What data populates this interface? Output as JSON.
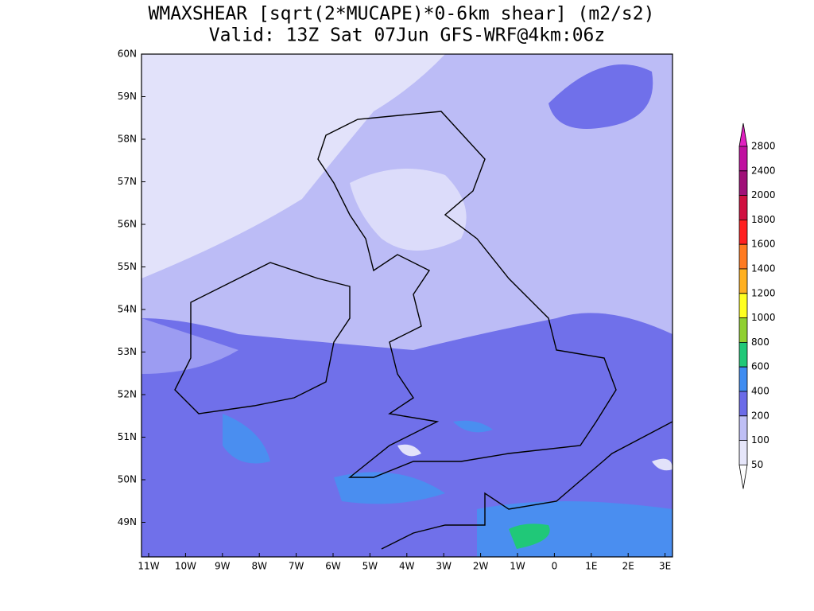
{
  "header": {
    "title": "WMAXSHEAR [sqrt(2*MUCAPE)*0-6km shear] (m2/s2)",
    "subtitle": "Valid: 13Z Sat 07Jun GFS-WRF@4km:06z"
  },
  "map": {
    "lat_labels": [
      "60N",
      "59N",
      "58N",
      "57N",
      "56N",
      "55N",
      "54N",
      "53N",
      "52N",
      "51N",
      "50N",
      "49N"
    ],
    "lon_labels": [
      "11W",
      "10W",
      "9W",
      "8W",
      "7W",
      "6W",
      "5W",
      "4W",
      "3W",
      "2W",
      "1W",
      "0",
      "1E",
      "2E",
      "3E"
    ]
  },
  "colorbar": {
    "labels": [
      "2800",
      "2400",
      "2000",
      "1800",
      "1600",
      "1400",
      "1200",
      "1000",
      "800",
      "600",
      "400",
      "200",
      "100",
      "50"
    ],
    "colors": [
      "#e020c0",
      "#c010a0",
      "#a01078",
      "#d01040",
      "#ff2020",
      "#ff7a20",
      "#ffb020",
      "#ffff20",
      "#90d030",
      "#20c878",
      "#3f8cf0",
      "#6b6be8",
      "#bfbff5",
      "#e6e6fa",
      "#ffffff"
    ]
  }
}
